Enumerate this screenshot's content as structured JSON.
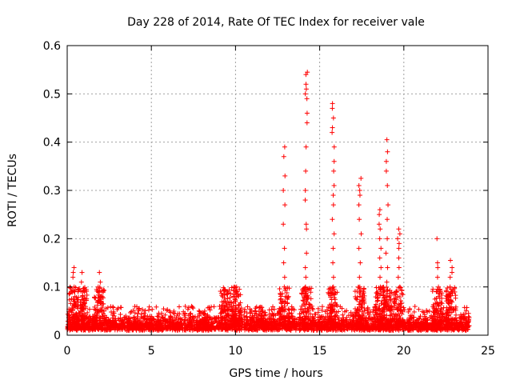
{
  "chart_data": {
    "type": "scatter",
    "title": "Day 228 of 2014, Rate Of TEC Index for receiver vale",
    "xlabel": "GPS time / hours",
    "ylabel": "ROTI / TECUs",
    "xlim": [
      0,
      25
    ],
    "ylim": [
      0,
      0.6
    ],
    "xticks": [
      0,
      5,
      10,
      15,
      20,
      25
    ],
    "xtick_labels": [
      "0",
      "5",
      "10",
      "15",
      "20",
      "25"
    ],
    "yticks": [
      0,
      0.1,
      0.2,
      0.3,
      0.4,
      0.5,
      0.6
    ],
    "ytick_labels": [
      "0",
      "0.1",
      "0.2",
      "0.3",
      "0.4",
      "0.5",
      "0.6"
    ],
    "grid": true,
    "marker": "+",
    "color": "#ff0000",
    "series": [
      {
        "name": "ROTI",
        "x_range": [
          0,
          23.9
        ],
        "baseline_band": [
          0.01,
          0.04
        ],
        "spikes": [
          {
            "x": 0.4,
            "values": [
              0.14,
              0.13,
              0.12,
              0.1,
              0.09,
              0.08,
              0.07,
              0.06
            ]
          },
          {
            "x": 0.9,
            "values": [
              0.13,
              0.11,
              0.09,
              0.08,
              0.06
            ]
          },
          {
            "x": 1.9,
            "values": [
              0.13,
              0.11,
              0.1,
              0.08,
              0.07
            ]
          },
          {
            "x": 9.4,
            "values": [
              0.07,
              0.06,
              0.05
            ]
          },
          {
            "x": 10.0,
            "values": [
              0.1,
              0.09,
              0.07
            ]
          },
          {
            "x": 12.9,
            "values": [
              0.39,
              0.37,
              0.33,
              0.3,
              0.27,
              0.23,
              0.18,
              0.15,
              0.12,
              0.1,
              0.08
            ]
          },
          {
            "x": 14.2,
            "values": [
              0.545,
              0.54,
              0.52,
              0.51,
              0.5,
              0.49,
              0.46,
              0.44,
              0.39,
              0.34,
              0.3,
              0.28,
              0.23,
              0.22,
              0.17,
              0.14,
              0.12,
              0.1,
              0.09
            ]
          },
          {
            "x": 15.8,
            "values": [
              0.48,
              0.47,
              0.45,
              0.43,
              0.42,
              0.39,
              0.36,
              0.34,
              0.31,
              0.29,
              0.27,
              0.24,
              0.21,
              0.18,
              0.15,
              0.12,
              0.1
            ]
          },
          {
            "x": 17.4,
            "values": [
              0.325,
              0.31,
              0.3,
              0.29,
              0.27,
              0.24,
              0.21,
              0.18,
              0.15,
              0.12,
              0.1
            ]
          },
          {
            "x": 18.6,
            "values": [
              0.26,
              0.25,
              0.23,
              0.22,
              0.2,
              0.18,
              0.16,
              0.14,
              0.12,
              0.1
            ]
          },
          {
            "x": 19.0,
            "values": [
              0.405,
              0.38,
              0.36,
              0.34,
              0.31,
              0.27,
              0.24,
              0.2,
              0.17,
              0.14,
              0.11
            ]
          },
          {
            "x": 19.7,
            "values": [
              0.22,
              0.21,
              0.2,
              0.19,
              0.18,
              0.16,
              0.14,
              0.12,
              0.1,
              0.08
            ]
          },
          {
            "x": 22.0,
            "values": [
              0.2,
              0.15,
              0.14,
              0.12,
              0.1,
              0.09
            ]
          },
          {
            "x": 22.8,
            "values": [
              0.155,
              0.14,
              0.13,
              0.12,
              0.1,
              0.09
            ]
          }
        ]
      }
    ]
  }
}
